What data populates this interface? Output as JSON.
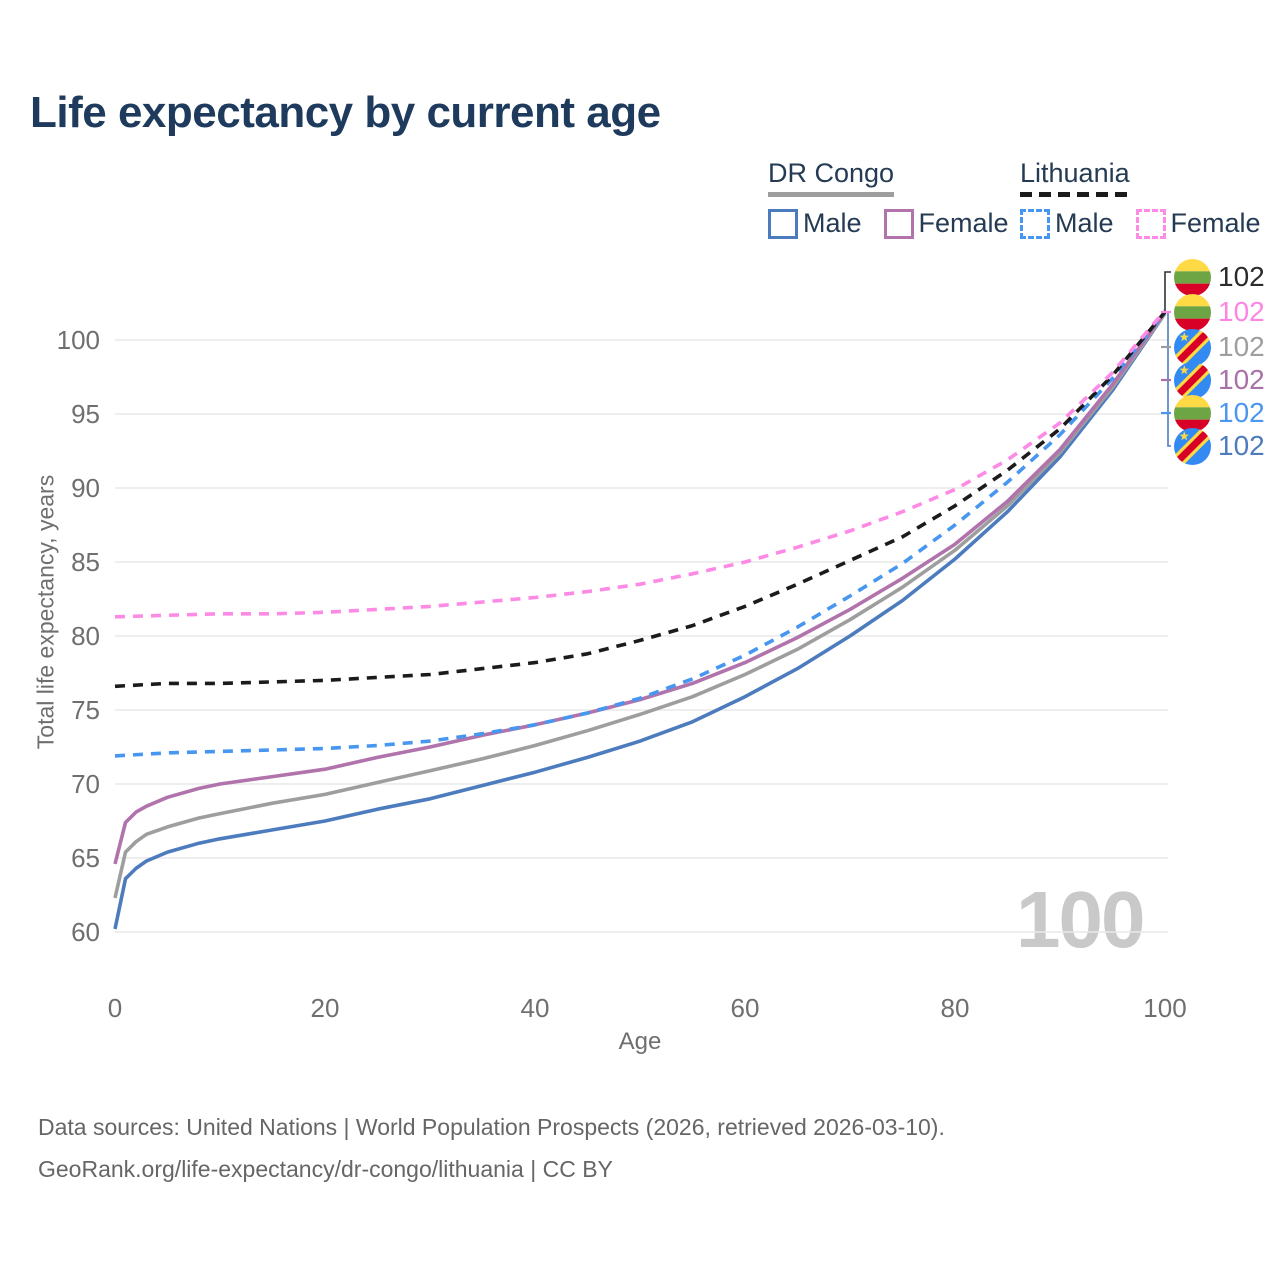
{
  "title": "Life expectancy by current age",
  "legend": {
    "groups": [
      {
        "label": "DR Congo",
        "line_style": "solid",
        "underline_color": "#9e9e9e",
        "items": [
          {
            "label": "Male",
            "color": "#4d7cbe"
          },
          {
            "label": "Female",
            "color": "#b173ab"
          }
        ]
      },
      {
        "label": "Lithuania",
        "line_style": "dashed",
        "underline_color": "#1b1b1b",
        "items": [
          {
            "label": "Male",
            "color": "#4796f0"
          },
          {
            "label": "Female",
            "color": "#fd8ae5"
          }
        ]
      }
    ]
  },
  "axes": {
    "x": {
      "label": "Age",
      "ticks": [
        0,
        20,
        40,
        60,
        80,
        100
      ],
      "range": [
        0,
        100
      ]
    },
    "y": {
      "label": "Total life expectancy, years",
      "ticks": [
        60,
        65,
        70,
        75,
        80,
        85,
        90,
        95,
        100
      ],
      "range": [
        60,
        100
      ]
    }
  },
  "age_cursor": "100",
  "chart_data": {
    "type": "line",
    "title": "Life expectancy by current age",
    "xlabel": "Age",
    "ylabel": "Total life expectancy, years",
    "xlim": [
      0,
      100
    ],
    "ylim": [
      60,
      100
    ],
    "grid": "horizontal",
    "legend_position": "top-right",
    "series": [
      {
        "id": "drc-male",
        "name": "DR Congo Male",
        "country": "DR Congo",
        "sex": "male",
        "color": "#4d7cbe",
        "dash": false,
        "points": [
          [
            0,
            60.2
          ],
          [
            1,
            63.6
          ],
          [
            2,
            64.3
          ],
          [
            3,
            64.8
          ],
          [
            5,
            65.4
          ],
          [
            8,
            66.0
          ],
          [
            10,
            66.3
          ],
          [
            15,
            66.9
          ],
          [
            20,
            67.5
          ],
          [
            25,
            68.3
          ],
          [
            30,
            69.0
          ],
          [
            35,
            69.9
          ],
          [
            40,
            70.8
          ],
          [
            45,
            71.8
          ],
          [
            50,
            72.9
          ],
          [
            55,
            74.2
          ],
          [
            60,
            75.9
          ],
          [
            65,
            77.8
          ],
          [
            70,
            80.0
          ],
          [
            75,
            82.4
          ],
          [
            80,
            85.2
          ],
          [
            85,
            88.4
          ],
          [
            90,
            92.1
          ],
          [
            95,
            96.6
          ],
          [
            100,
            101.8
          ]
        ]
      },
      {
        "id": "drc-total",
        "name": "DR Congo Both sexes",
        "country": "DR Congo",
        "sex": "total",
        "color": "#9e9e9e",
        "dash": false,
        "points": [
          [
            0,
            62.3
          ],
          [
            1,
            65.4
          ],
          [
            2,
            66.1
          ],
          [
            3,
            66.6
          ],
          [
            5,
            67.1
          ],
          [
            8,
            67.7
          ],
          [
            10,
            68.0
          ],
          [
            15,
            68.7
          ],
          [
            20,
            69.3
          ],
          [
            25,
            70.1
          ],
          [
            30,
            70.9
          ],
          [
            35,
            71.7
          ],
          [
            40,
            72.6
          ],
          [
            45,
            73.6
          ],
          [
            50,
            74.7
          ],
          [
            55,
            75.9
          ],
          [
            60,
            77.4
          ],
          [
            65,
            79.1
          ],
          [
            70,
            81.1
          ],
          [
            75,
            83.3
          ],
          [
            80,
            85.8
          ],
          [
            85,
            88.8
          ],
          [
            90,
            92.4
          ],
          [
            95,
            96.8
          ],
          [
            100,
            101.8
          ]
        ]
      },
      {
        "id": "drc-female",
        "name": "DR Congo Female",
        "country": "DR Congo",
        "sex": "female",
        "color": "#b173ab",
        "dash": false,
        "points": [
          [
            0,
            64.6
          ],
          [
            1,
            67.4
          ],
          [
            2,
            68.1
          ],
          [
            3,
            68.5
          ],
          [
            5,
            69.1
          ],
          [
            8,
            69.7
          ],
          [
            10,
            70.0
          ],
          [
            15,
            70.5
          ],
          [
            20,
            71.0
          ],
          [
            25,
            71.8
          ],
          [
            30,
            72.5
          ],
          [
            35,
            73.3
          ],
          [
            40,
            74.0
          ],
          [
            45,
            74.8
          ],
          [
            50,
            75.7
          ],
          [
            55,
            76.8
          ],
          [
            60,
            78.2
          ],
          [
            65,
            79.9
          ],
          [
            70,
            81.8
          ],
          [
            75,
            83.9
          ],
          [
            80,
            86.2
          ],
          [
            85,
            89.1
          ],
          [
            90,
            92.6
          ],
          [
            95,
            97.0
          ],
          [
            100,
            101.9
          ]
        ]
      },
      {
        "id": "lt-male",
        "name": "Lithuania Male",
        "country": "Lithuania",
        "sex": "male",
        "color": "#4796f0",
        "dash": true,
        "points": [
          [
            0,
            71.9
          ],
          [
            5,
            72.1
          ],
          [
            10,
            72.2
          ],
          [
            15,
            72.3
          ],
          [
            20,
            72.4
          ],
          [
            25,
            72.6
          ],
          [
            30,
            72.9
          ],
          [
            35,
            73.4
          ],
          [
            40,
            74.0
          ],
          [
            45,
            74.8
          ],
          [
            50,
            75.8
          ],
          [
            55,
            77.1
          ],
          [
            60,
            78.7
          ],
          [
            65,
            80.6
          ],
          [
            70,
            82.7
          ],
          [
            75,
            84.9
          ],
          [
            80,
            87.5
          ],
          [
            85,
            90.4
          ],
          [
            90,
            93.6
          ],
          [
            95,
            97.4
          ],
          [
            100,
            101.9
          ]
        ]
      },
      {
        "id": "lt-total",
        "name": "Lithuania Both sexes",
        "country": "Lithuania",
        "sex": "total",
        "color": "#1b1b1b",
        "dash": true,
        "points": [
          [
            0,
            76.6
          ],
          [
            5,
            76.8
          ],
          [
            10,
            76.8
          ],
          [
            15,
            76.9
          ],
          [
            20,
            77.0
          ],
          [
            25,
            77.2
          ],
          [
            30,
            77.4
          ],
          [
            35,
            77.8
          ],
          [
            40,
            78.2
          ],
          [
            45,
            78.8
          ],
          [
            50,
            79.7
          ],
          [
            55,
            80.7
          ],
          [
            60,
            82.0
          ],
          [
            65,
            83.5
          ],
          [
            70,
            85.1
          ],
          [
            75,
            86.7
          ],
          [
            80,
            88.8
          ],
          [
            85,
            91.2
          ],
          [
            90,
            94.0
          ],
          [
            95,
            97.6
          ],
          [
            100,
            101.9
          ]
        ]
      },
      {
        "id": "lt-female",
        "name": "Lithuania Female",
        "country": "Lithuania",
        "sex": "female",
        "color": "#fd8ae5",
        "dash": true,
        "points": [
          [
            0,
            81.3
          ],
          [
            5,
            81.4
          ],
          [
            10,
            81.5
          ],
          [
            15,
            81.5
          ],
          [
            20,
            81.6
          ],
          [
            25,
            81.8
          ],
          [
            30,
            82.0
          ],
          [
            35,
            82.3
          ],
          [
            40,
            82.6
          ],
          [
            45,
            83.0
          ],
          [
            50,
            83.5
          ],
          [
            55,
            84.2
          ],
          [
            60,
            85.0
          ],
          [
            65,
            86.0
          ],
          [
            70,
            87.1
          ],
          [
            75,
            88.4
          ],
          [
            80,
            89.9
          ],
          [
            85,
            91.9
          ],
          [
            90,
            94.4
          ],
          [
            95,
            97.8
          ],
          [
            100,
            102.0
          ]
        ]
      }
    ],
    "end_labels": [
      {
        "flag": "lithuania",
        "series": "lt-total",
        "value": "102",
        "color": "#2b2b2b"
      },
      {
        "flag": "lithuania",
        "series": "lt-female",
        "value": "102",
        "color": "#fd85e4"
      },
      {
        "flag": "dr-congo",
        "series": "drc-total",
        "value": "102",
        "color": "#9e9e9e"
      },
      {
        "flag": "dr-congo",
        "series": "drc-female",
        "value": "102",
        "color": "#a872a8"
      },
      {
        "flag": "lithuania",
        "series": "lt-male",
        "value": "102",
        "color": "#4b96ee"
      },
      {
        "flag": "dr-congo",
        "series": "drc-male",
        "value": "102",
        "color": "#4d7cbe"
      }
    ],
    "age_cursor": "100"
  },
  "flags": {
    "lithuania": {
      "stripes": [
        "#FFDA44",
        "#6DA544",
        "#D80027"
      ]
    },
    "dr_congo": {
      "field": "#338AF3",
      "band": "#FFDA44",
      "stripe": "#D80027",
      "star": "#FFDA44"
    }
  },
  "footer": {
    "line1": "Data sources: United Nations | World Population Prospects (2026, retrieved 2026-03-10).",
    "line2": "GeoRank.org/life-expectancy/dr-congo/lithuania | CC BY"
  }
}
